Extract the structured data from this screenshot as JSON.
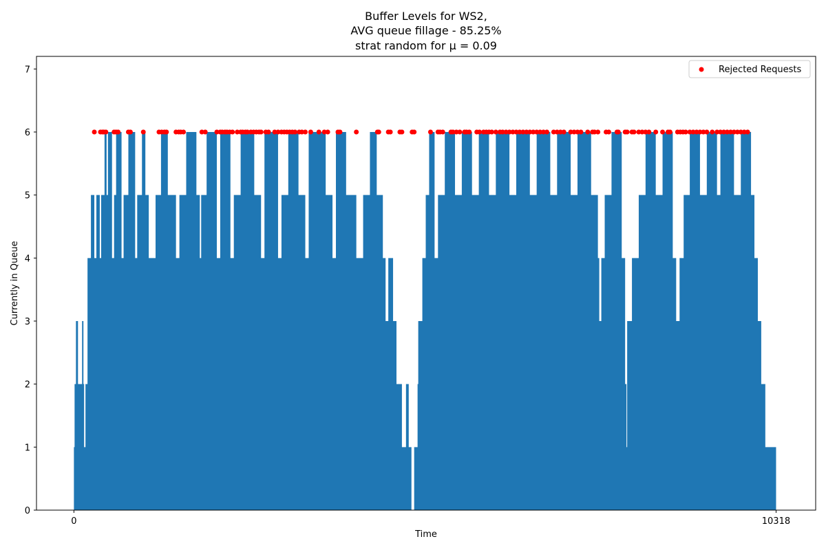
{
  "chart_data": {
    "type": "area",
    "title_lines": [
      "Buffer Levels for WS2,",
      "AVG queue fillage - 85.25%",
      "strat random for μ = 0.09"
    ],
    "xlabel": "Time",
    "ylabel": "Currently in Queue",
    "xlim": [
      -550,
      10900
    ],
    "ylim": [
      0,
      7.2
    ],
    "x_ticks": [
      0,
      10318
    ],
    "y_ticks": [
      0,
      1,
      2,
      3,
      4,
      5,
      6,
      7
    ],
    "grid": false,
    "legend_position": "top-right",
    "series": [
      {
        "kind": "step-fill",
        "color": "#1f77b4",
        "points": [
          [
            0,
            1
          ],
          [
            10,
            2
          ],
          [
            30,
            3
          ],
          [
            60,
            2
          ],
          [
            120,
            3
          ],
          [
            140,
            2
          ],
          [
            150,
            1
          ],
          [
            170,
            2
          ],
          [
            200,
            4
          ],
          [
            250,
            5
          ],
          [
            300,
            4
          ],
          [
            330,
            5
          ],
          [
            380,
            4
          ],
          [
            400,
            5
          ],
          [
            450,
            6
          ],
          [
            480,
            5
          ],
          [
            500,
            6
          ],
          [
            560,
            4
          ],
          [
            590,
            5
          ],
          [
            620,
            6
          ],
          [
            700,
            4
          ],
          [
            730,
            5
          ],
          [
            800,
            6
          ],
          [
            900,
            4
          ],
          [
            930,
            5
          ],
          [
            1000,
            6
          ],
          [
            1050,
            5
          ],
          [
            1100,
            4
          ],
          [
            1200,
            5
          ],
          [
            1280,
            6
          ],
          [
            1380,
            5
          ],
          [
            1500,
            4
          ],
          [
            1550,
            5
          ],
          [
            1650,
            6
          ],
          [
            1800,
            5
          ],
          [
            1850,
            4
          ],
          [
            1870,
            5
          ],
          [
            1950,
            6
          ],
          [
            2100,
            4
          ],
          [
            2150,
            6
          ],
          [
            2300,
            4
          ],
          [
            2350,
            5
          ],
          [
            2450,
            6
          ],
          [
            2650,
            5
          ],
          [
            2750,
            4
          ],
          [
            2800,
            6
          ],
          [
            3000,
            4
          ],
          [
            3050,
            5
          ],
          [
            3150,
            6
          ],
          [
            3300,
            5
          ],
          [
            3400,
            4
          ],
          [
            3450,
            6
          ],
          [
            3700,
            5
          ],
          [
            3800,
            4
          ],
          [
            3850,
            6
          ],
          [
            4000,
            5
          ],
          [
            4150,
            4
          ],
          [
            4250,
            5
          ],
          [
            4350,
            6
          ],
          [
            4450,
            5
          ],
          [
            4540,
            4
          ],
          [
            4580,
            3
          ],
          [
            4620,
            4
          ],
          [
            4690,
            3
          ],
          [
            4740,
            2
          ],
          [
            4820,
            1
          ],
          [
            4880,
            2
          ],
          [
            4920,
            1
          ],
          [
            4960,
            0
          ],
          [
            5000,
            1
          ],
          [
            5050,
            2
          ],
          [
            5060,
            3
          ],
          [
            5120,
            4
          ],
          [
            5170,
            5
          ],
          [
            5220,
            6
          ],
          [
            5300,
            4
          ],
          [
            5350,
            5
          ],
          [
            5450,
            6
          ],
          [
            5600,
            5
          ],
          [
            5700,
            6
          ],
          [
            5850,
            5
          ],
          [
            5950,
            6
          ],
          [
            6100,
            5
          ],
          [
            6200,
            6
          ],
          [
            6400,
            5
          ],
          [
            6500,
            6
          ],
          [
            6700,
            5
          ],
          [
            6800,
            6
          ],
          [
            7000,
            5
          ],
          [
            7100,
            6
          ],
          [
            7300,
            5
          ],
          [
            7400,
            6
          ],
          [
            7600,
            5
          ],
          [
            7700,
            4
          ],
          [
            7720,
            3
          ],
          [
            7750,
            4
          ],
          [
            7800,
            5
          ],
          [
            7900,
            6
          ],
          [
            8050,
            4
          ],
          [
            8100,
            2
          ],
          [
            8120,
            1
          ],
          [
            8130,
            3
          ],
          [
            8200,
            4
          ],
          [
            8300,
            5
          ],
          [
            8400,
            6
          ],
          [
            8550,
            5
          ],
          [
            8650,
            6
          ],
          [
            8800,
            4
          ],
          [
            8850,
            3
          ],
          [
            8900,
            4
          ],
          [
            8960,
            5
          ],
          [
            9050,
            6
          ],
          [
            9200,
            5
          ],
          [
            9300,
            6
          ],
          [
            9450,
            5
          ],
          [
            9500,
            6
          ],
          [
            9700,
            5
          ],
          [
            9800,
            6
          ],
          [
            9950,
            5
          ],
          [
            10000,
            4
          ],
          [
            10050,
            3
          ],
          [
            10100,
            2
          ],
          [
            10160,
            1
          ],
          [
            10240,
            1
          ],
          [
            10318,
            0
          ]
        ]
      },
      {
        "name": "Rejected Requests",
        "kind": "scatter",
        "color": "#ff0000",
        "x": [
          300,
          390,
          420,
          440,
          470,
          590,
          620,
          650,
          800,
          830,
          1020,
          1250,
          1290,
          1330,
          1360,
          1500,
          1540,
          1570,
          1610,
          1880,
          1930,
          2100,
          2150,
          2180,
          2220,
          2250,
          2290,
          2330,
          2400,
          2450,
          2480,
          2520,
          2550,
          2600,
          2640,
          2680,
          2720,
          2750,
          2820,
          2860,
          2950,
          3000,
          3050,
          3090,
          3130,
          3170,
          3210,
          3250,
          3310,
          3350,
          3400,
          3480,
          3600,
          3680,
          3730,
          3880,
          3910,
          4150,
          4460,
          4480,
          4620,
          4650,
          4790,
          4820,
          4970,
          5000,
          5240,
          5350,
          5380,
          5420,
          5540,
          5570,
          5620,
          5670,
          5740,
          5770,
          5810,
          5920,
          5960,
          6020,
          6060,
          6100,
          6140,
          6200,
          6260,
          6300,
          6350,
          6400,
          6450,
          6500,
          6550,
          6600,
          6650,
          6700,
          6750,
          6800,
          6850,
          6900,
          6950,
          7050,
          7100,
          7150,
          7200,
          7300,
          7350,
          7400,
          7450,
          7550,
          7620,
          7650,
          7700,
          7820,
          7860,
          7980,
          8000,
          8100,
          8130,
          8200,
          8230,
          8300,
          8350,
          8400,
          8450,
          8550,
          8650,
          8730,
          8760,
          8870,
          8910,
          8950,
          8990,
          9050,
          9100,
          9150,
          9200,
          9250,
          9300,
          9380,
          9450,
          9500,
          9550,
          9600,
          9650,
          9700,
          9750,
          9800,
          9850,
          9900
        ],
        "y_value": 6
      }
    ]
  }
}
